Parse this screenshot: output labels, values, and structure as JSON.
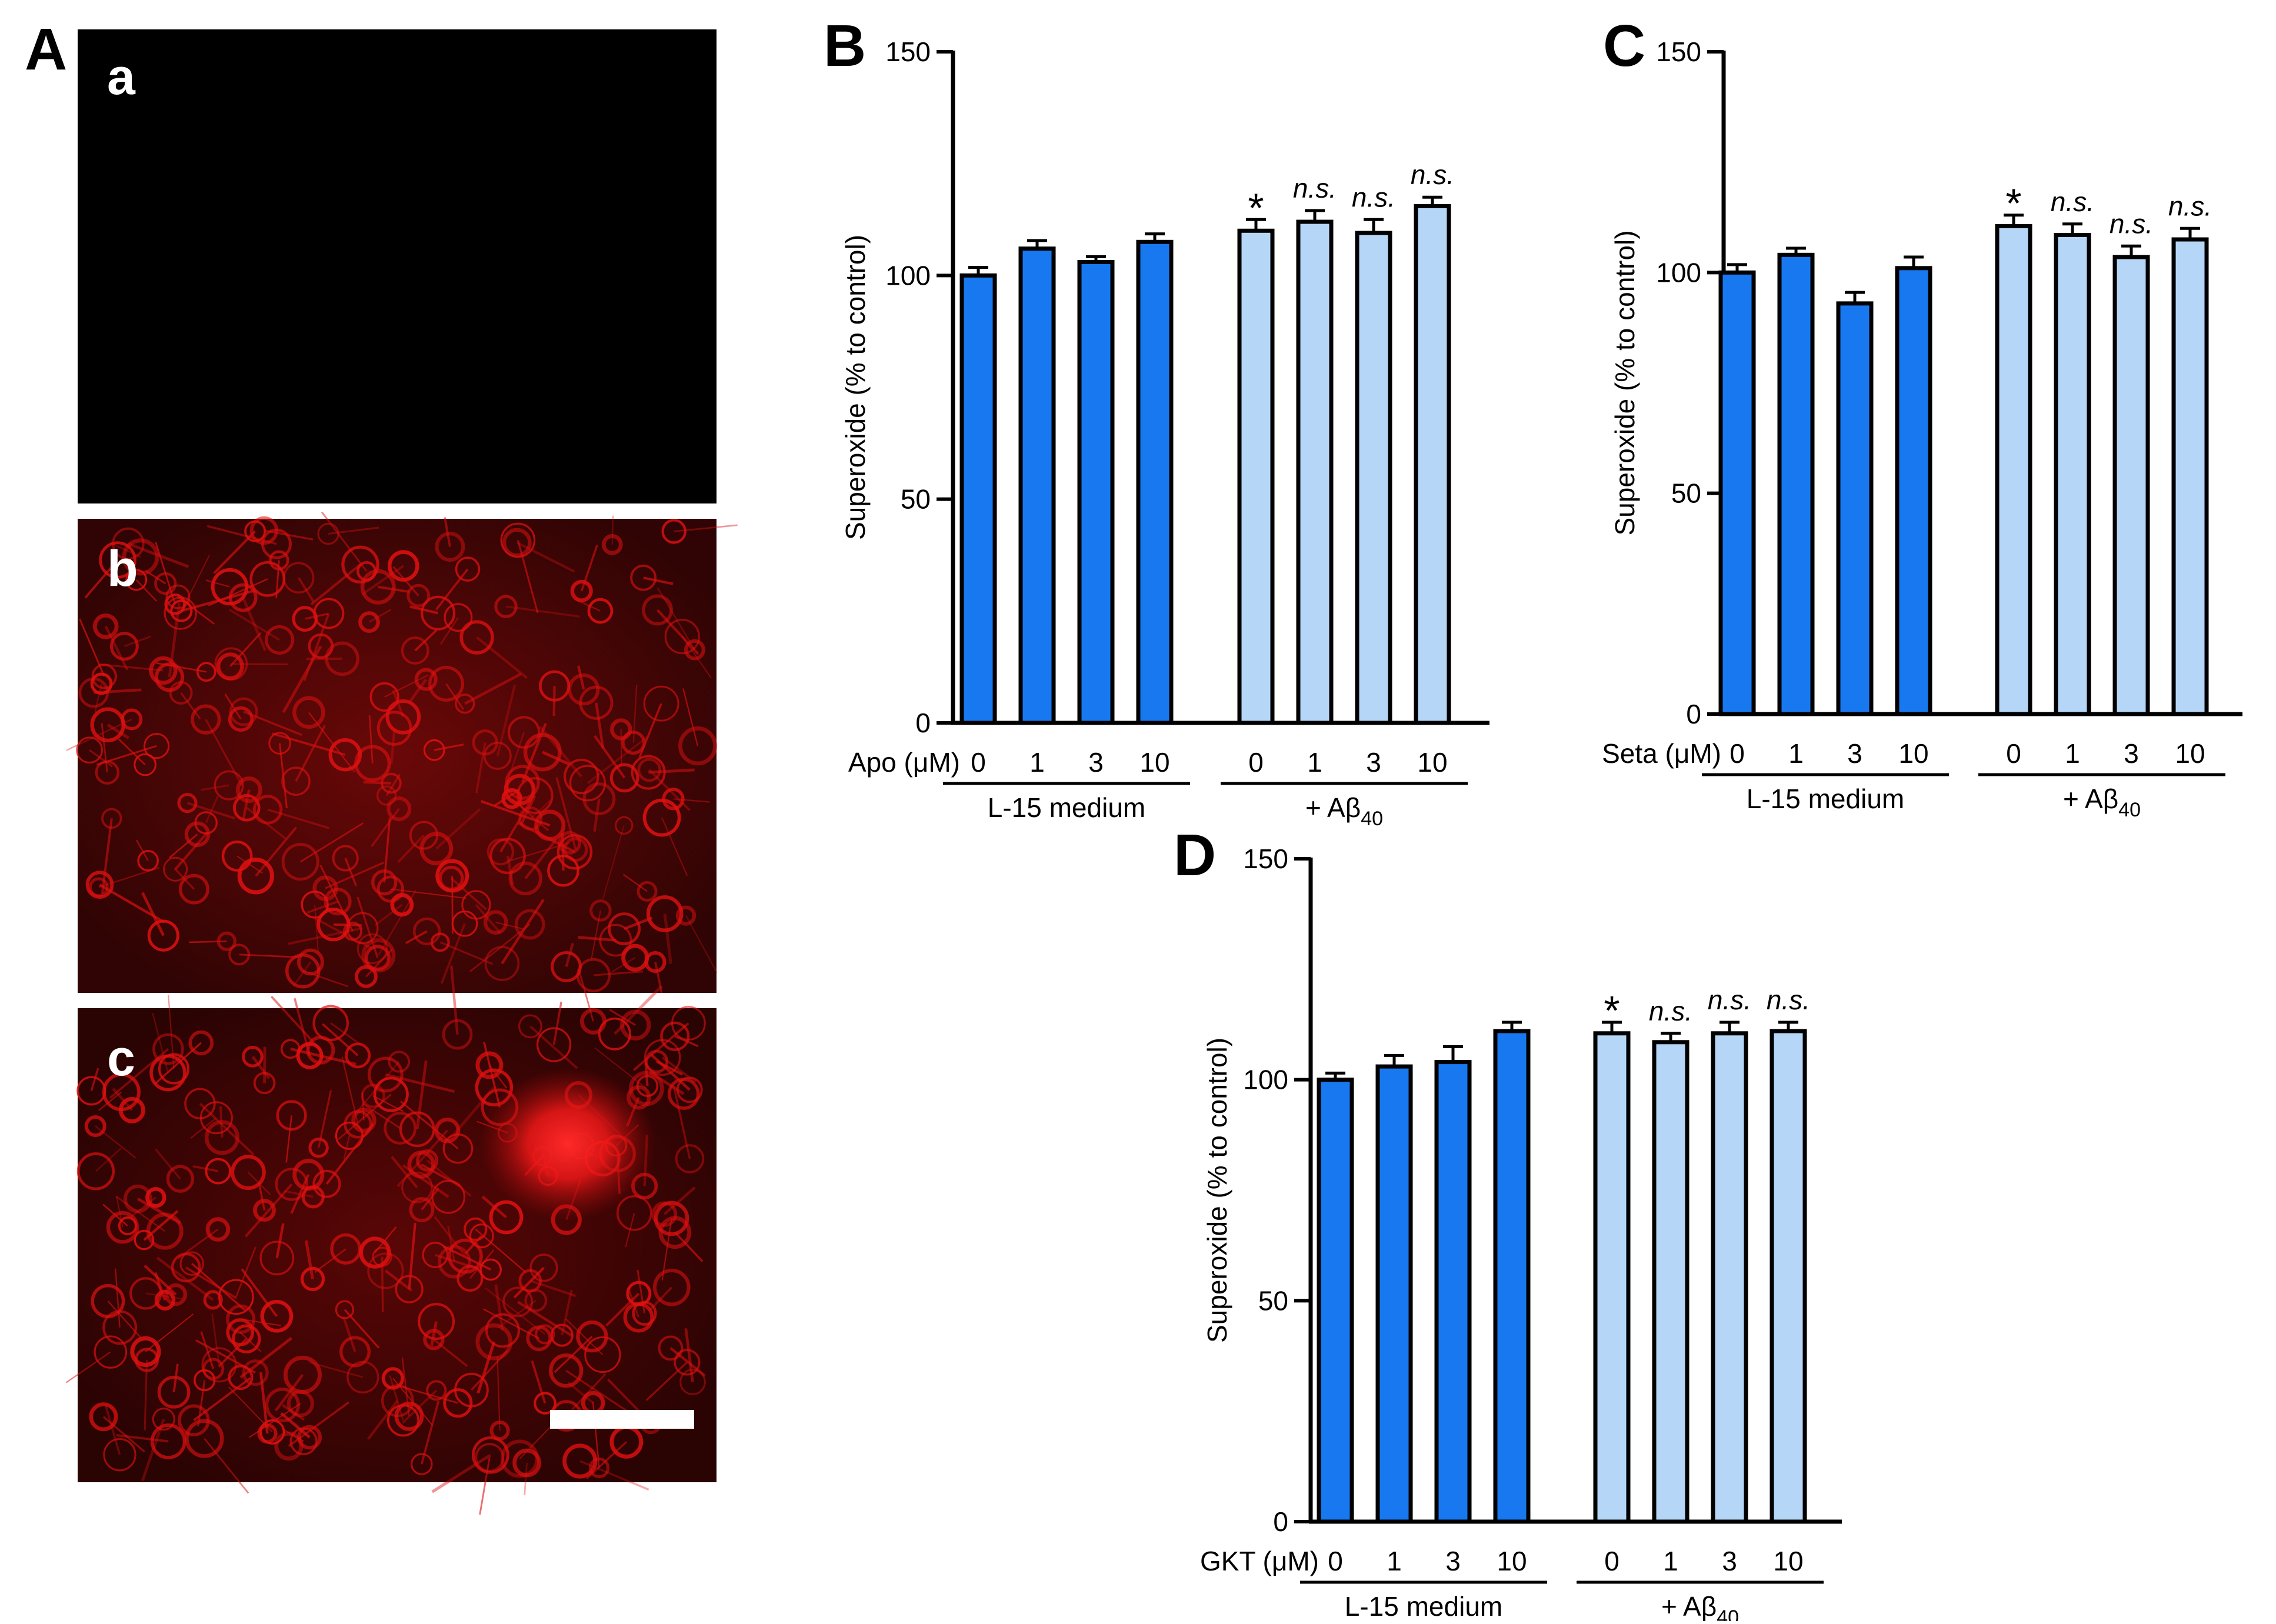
{
  "panel_a": {
    "label": "A",
    "subpanels": [
      {
        "label": "a",
        "tone": "dark"
      },
      {
        "label": "b",
        "tone": "red-sparse"
      },
      {
        "label": "c",
        "tone": "red-bright"
      }
    ]
  },
  "colors": {
    "medium_bar": "#1878f0",
    "abeta_bar": "#b5d6f7",
    "axis": "#000000",
    "fluorescence": "#e01010"
  },
  "chart_data": [
    {
      "panel": "B",
      "type": "bar",
      "ylabel": "Superoxide (% to control)",
      "ylim": [
        0,
        150
      ],
      "yticks": [
        0,
        50,
        100,
        150
      ],
      "x_prefix": "Apo (μM)",
      "groups": [
        {
          "label": "L-15 medium",
          "label_sub": "",
          "categories": [
            "0",
            "1",
            "3",
            "10"
          ],
          "values": [
            100,
            106,
            103,
            107.5
          ],
          "errors": [
            1.8,
            1.8,
            1.2,
            1.8
          ],
          "annotations": [
            "",
            "",
            "",
            ""
          ]
        },
        {
          "label": "+ Aβ",
          "label_sub": "40",
          "categories": [
            "0",
            "1",
            "3",
            "10"
          ],
          "values": [
            110,
            112,
            109.5,
            115.5
          ],
          "errors": [
            2.5,
            2.5,
            3.0,
            2.0
          ],
          "annotations": [
            "*",
            "n.s.",
            "n.s.",
            "n.s."
          ]
        }
      ]
    },
    {
      "panel": "C",
      "type": "bar",
      "ylabel": "Superoxide (% to control)",
      "ylim": [
        0,
        150
      ],
      "yticks": [
        0,
        50,
        100,
        150
      ],
      "x_prefix": "Seta (μM)",
      "groups": [
        {
          "label": "L-15 medium",
          "label_sub": "",
          "categories": [
            "0",
            "1",
            "3",
            "10"
          ],
          "values": [
            100,
            104,
            93,
            101
          ],
          "errors": [
            1.8,
            1.5,
            2.5,
            2.5
          ],
          "annotations": [
            "",
            "",
            "",
            ""
          ]
        },
        {
          "label": "+ Aβ",
          "label_sub": "40",
          "categories": [
            "0",
            "1",
            "3",
            "10"
          ],
          "values": [
            110.5,
            108.5,
            103.5,
            107.5
          ],
          "errors": [
            2.5,
            2.5,
            2.5,
            2.5
          ],
          "annotations": [
            "*",
            "n.s.",
            "n.s.",
            "n.s."
          ]
        }
      ]
    },
    {
      "panel": "D",
      "type": "bar",
      "ylabel": "Superoxide (% to control)",
      "ylim": [
        0,
        150
      ],
      "yticks": [
        0,
        50,
        100,
        150
      ],
      "x_prefix": "GKT (μM)",
      "groups": [
        {
          "label": "L-15 medium",
          "label_sub": "",
          "categories": [
            "0",
            "1",
            "3",
            "10"
          ],
          "values": [
            100,
            103,
            104,
            111
          ],
          "errors": [
            1.5,
            2.5,
            3.5,
            2.0
          ],
          "annotations": [
            "",
            "",
            "",
            ""
          ]
        },
        {
          "label": "+ Aβ",
          "label_sub": "40",
          "categories": [
            "0",
            "1",
            "3",
            "10"
          ],
          "values": [
            110.5,
            108.5,
            110.5,
            111
          ],
          "errors": [
            2.5,
            2.0,
            2.5,
            2.0
          ],
          "annotations": [
            "*",
            "n.s.",
            "n.s.",
            "n.s."
          ]
        }
      ]
    }
  ]
}
